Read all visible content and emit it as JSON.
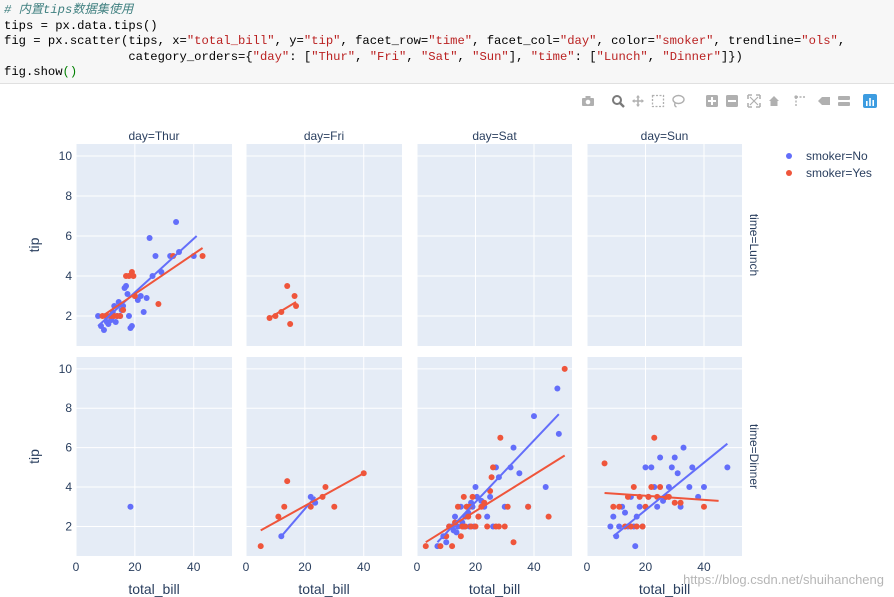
{
  "code": {
    "comment": "# 内置tips数据集使用",
    "line1": "tips = px.data.tips()",
    "line2_pre": "fig = px.scatter(tips, x=",
    "line2_s1": "\"total_bill\"",
    "line2_mid1": ", y=",
    "line2_s2": "\"tip\"",
    "line2_mid2": ", facet_row=",
    "line2_s3": "\"time\"",
    "line2_mid3": ", facet_col=",
    "line2_s4": "\"day\"",
    "line2_mid4": ", color=",
    "line2_s5": "\"smoker\"",
    "line2_mid5": ", trendline=",
    "line2_s6": "\"ols\"",
    "line2_end": ",",
    "line3_pre": "                 category_orders={",
    "line3_s1": "\"day\"",
    "line3_mid1": ": [",
    "line3_s2": "\"Thur\"",
    "line3_c1": ", ",
    "line3_s3": "\"Fri\"",
    "line3_c2": ", ",
    "line3_s4": "\"Sat\"",
    "line3_c3": ", ",
    "line3_s5": "\"Sun\"",
    "line3_mid2": "], ",
    "line3_s6": "\"time\"",
    "line3_mid3": ": [",
    "line3_s7": "\"Lunch\"",
    "line3_c4": ", ",
    "line3_s8": "\"Dinner\"",
    "line3_end": "]})",
    "line4_pre": "fig.show",
    "line4_paren": "()"
  },
  "toolbar": {
    "icons": [
      "camera-icon",
      "zoom-icon",
      "pan-icon",
      "box-select-icon",
      "lasso-select-icon",
      "zoom-in-icon",
      "zoom-out-icon",
      "autoscale-icon",
      "reset-axes-icon",
      "spike-lines-icon",
      "hover-closest-icon",
      "hover-compare-icon",
      "plotly-logo-icon"
    ]
  },
  "watermark": "https://blog.csdn.net/shuihancheng",
  "colors": {
    "no": "#636efa",
    "yes": "#ef553b",
    "plot_bg": "#e5ecf6",
    "grid": "#ffffff",
    "text": "#2a3f5f"
  },
  "chart_data": {
    "type": "scatter",
    "facet_cols": [
      "day=Thur",
      "day=Fri",
      "day=Sat",
      "day=Sun"
    ],
    "facet_rows": [
      "time=Lunch",
      "time=Dinner"
    ],
    "xlabel": "total_bill",
    "ylabel": "tip",
    "xlim": [
      0,
      53
    ],
    "ylim": [
      0.5,
      10.6
    ],
    "xticks": [
      0,
      20,
      40
    ],
    "yticks": [
      2,
      4,
      6,
      8,
      10
    ],
    "legend": {
      "position": "top-right",
      "entries": [
        "smoker=No",
        "smoker=Yes"
      ]
    },
    "trendline": "ols",
    "facets": [
      {
        "row": "time=Lunch",
        "col": "day=Thur",
        "points": {
          "No": [
            [
              7.5,
              2.0
            ],
            [
              8.5,
              1.5
            ],
            [
              9.5,
              1.3
            ],
            [
              10,
              2.0
            ],
            [
              10.5,
              1.7
            ],
            [
              11,
              1.6
            ],
            [
              11.5,
              2.0
            ],
            [
              12,
              1.8
            ],
            [
              12.5,
              2.2
            ],
            [
              13,
              2.5
            ],
            [
              13.5,
              1.7
            ],
            [
              14,
              2.0
            ],
            [
              14.5,
              2.7
            ],
            [
              15,
              2.0
            ],
            [
              15.5,
              2.3
            ],
            [
              16,
              2.5
            ],
            [
              16.5,
              3.4
            ],
            [
              17,
              3.5
            ],
            [
              17.5,
              3.1
            ],
            [
              18,
              2.0
            ],
            [
              18.5,
              1.4
            ],
            [
              19,
              1.5
            ],
            [
              20,
              3.0
            ],
            [
              21,
              2.8
            ],
            [
              22,
              3.0
            ],
            [
              23,
              2.2
            ],
            [
              24,
              2.9
            ],
            [
              25,
              5.9
            ],
            [
              26,
              4.0
            ],
            [
              27,
              5.0
            ],
            [
              29,
              4.2
            ],
            [
              32,
              5.0
            ],
            [
              34,
              6.7
            ],
            [
              35,
              5.2
            ],
            [
              40,
              5.0
            ]
          ],
          "Yes": [
            [
              9,
              2.0
            ],
            [
              10.5,
              2.0
            ],
            [
              12,
              2.0
            ],
            [
              13,
              2.0
            ],
            [
              14,
              2.0
            ],
            [
              15,
              2.0
            ],
            [
              16,
              2.3
            ],
            [
              17,
              4.0
            ],
            [
              18,
              4.0
            ],
            [
              19,
              4.2
            ],
            [
              19.5,
              4.0
            ],
            [
              20,
              3.0
            ],
            [
              28,
              2.6
            ],
            [
              33,
              5.0
            ],
            [
              43,
              5.0
            ]
          ]
        },
        "trend": {
          "No": [
            [
              7.5,
              1.5
            ],
            [
              41,
              6.0
            ]
          ],
          "Yes": [
            [
              9,
              2.0
            ],
            [
              43,
              5.4
            ]
          ]
        }
      },
      {
        "row": "time=Lunch",
        "col": "day=Fri",
        "points": {
          "No": [],
          "Yes": [
            [
              8,
              1.9
            ],
            [
              10,
              2.0
            ],
            [
              12,
              2.2
            ],
            [
              14,
              3.5
            ],
            [
              15,
              1.6
            ],
            [
              16.5,
              3.0
            ],
            [
              17,
              2.5
            ]
          ]
        },
        "trend": {
          "No": null,
          "Yes": [
            [
              8,
              1.9
            ],
            [
              17,
              2.7
            ]
          ]
        }
      },
      {
        "row": "time=Lunch",
        "col": "day=Sat",
        "points": {
          "No": [],
          "Yes": []
        },
        "trend": {
          "No": null,
          "Yes": null
        }
      },
      {
        "row": "time=Lunch",
        "col": "day=Sun",
        "points": {
          "No": [],
          "Yes": []
        },
        "trend": {
          "No": null,
          "Yes": null
        }
      },
      {
        "row": "time=Dinner",
        "col": "day=Thur",
        "points": {
          "No": [
            [
              18.5,
              3.0
            ]
          ],
          "Yes": []
        },
        "trend": {
          "No": null,
          "Yes": null
        }
      },
      {
        "row": "time=Dinner",
        "col": "day=Fri",
        "points": {
          "No": [
            [
              12,
              1.5
            ],
            [
              22,
              3.5
            ],
            [
              23,
              3.3
            ],
            [
              23.5,
              3.2
            ]
          ],
          "Yes": [
            [
              5,
              1.0
            ],
            [
              11,
              2.5
            ],
            [
              13,
              3.0
            ],
            [
              14,
              4.3
            ],
            [
              22,
              3.0
            ],
            [
              26,
              3.5
            ],
            [
              27,
              4.0
            ],
            [
              30,
              3.0
            ],
            [
              40,
              4.7
            ]
          ]
        },
        "trend": {
          "No": [
            [
              12,
              1.5
            ],
            [
              23.5,
              3.5
            ]
          ],
          "Yes": [
            [
              5,
              1.8
            ],
            [
              40,
              4.7
            ]
          ]
        }
      },
      {
        "row": "time=Dinner",
        "col": "day=Sat",
        "points": {
          "No": [
            [
              7,
              1.0
            ],
            [
              9,
              1.5
            ],
            [
              10,
              1.2
            ],
            [
              11,
              2.0
            ],
            [
              12,
              2.0
            ],
            [
              12.5,
              1.8
            ],
            [
              13,
              2.5
            ],
            [
              13.5,
              1.7
            ],
            [
              14,
              2.0
            ],
            [
              15,
              3.0
            ],
            [
              15.5,
              2.2
            ],
            [
              16,
              2.0
            ],
            [
              16.5,
              2.5
            ],
            [
              17,
              3.0
            ],
            [
              17.5,
              2.7
            ],
            [
              18,
              2.0
            ],
            [
              18.5,
              3.2
            ],
            [
              19,
              3.0
            ],
            [
              19.5,
              2.0
            ],
            [
              20,
              4.0
            ],
            [
              20.5,
              3.5
            ],
            [
              21,
              2.5
            ],
            [
              22,
              3.3
            ],
            [
              23,
              3.0
            ],
            [
              24,
              2.5
            ],
            [
              25,
              3.5
            ],
            [
              26,
              2.0
            ],
            [
              27,
              5.0
            ],
            [
              28,
              4.5
            ],
            [
              30,
              3.0
            ],
            [
              32,
              5.0
            ],
            [
              33,
              6.0
            ],
            [
              35,
              4.7
            ],
            [
              38,
              3.0
            ],
            [
              40,
              7.6
            ],
            [
              44,
              4.0
            ],
            [
              48,
              9.0
            ],
            [
              48.5,
              6.7
            ]
          ],
          "Yes": [
            [
              3,
              1.0
            ],
            [
              8,
              1.0
            ],
            [
              10,
              1.5
            ],
            [
              11,
              2.0
            ],
            [
              12,
              1.0
            ],
            [
              13,
              2.2
            ],
            [
              14,
              3.0
            ],
            [
              15,
              1.5
            ],
            [
              15.5,
              2.0
            ],
            [
              16,
              3.5
            ],
            [
              16.5,
              2.0
            ],
            [
              17,
              3.0
            ],
            [
              17.5,
              2.5
            ],
            [
              18,
              3.0
            ],
            [
              18.5,
              2.0
            ],
            [
              19,
              3.5
            ],
            [
              20,
              2.0
            ],
            [
              21,
              2.5
            ],
            [
              22,
              3.0
            ],
            [
              23,
              3.2
            ],
            [
              24,
              2.0
            ],
            [
              25,
              3.8
            ],
            [
              25.5,
              4.5
            ],
            [
              26,
              5.0
            ],
            [
              27,
              2.0
            ],
            [
              28,
              2.0
            ],
            [
              28.5,
              6.5
            ],
            [
              30,
              2.0
            ],
            [
              31,
              3.0
            ],
            [
              33,
              1.2
            ],
            [
              38,
              3.0
            ],
            [
              45,
              2.5
            ],
            [
              50.5,
              10.0
            ]
          ]
        },
        "trend": {
          "No": [
            [
              7,
              1.2
            ],
            [
              48.5,
              7.7
            ]
          ],
          "Yes": [
            [
              3,
              1.2
            ],
            [
              50.5,
              5.6
            ]
          ]
        }
      },
      {
        "row": "time=Dinner",
        "col": "day=Sun",
        "points": {
          "No": [
            [
              8,
              2.0
            ],
            [
              9,
              2.5
            ],
            [
              10,
              1.5
            ],
            [
              11,
              2.0
            ],
            [
              12,
              3.0
            ],
            [
              13,
              2.7
            ],
            [
              14,
              2.0
            ],
            [
              15,
              3.5
            ],
            [
              16,
              2.0
            ],
            [
              16.5,
              1.0
            ],
            [
              17,
              2.5
            ],
            [
              18,
              3.0
            ],
            [
              19,
              2.0
            ],
            [
              20,
              5.0
            ],
            [
              21,
              3.5
            ],
            [
              22,
              5.0
            ],
            [
              23,
              4.0
            ],
            [
              24,
              3.0
            ],
            [
              25,
              5.5
            ],
            [
              26,
              3.3
            ],
            [
              27,
              3.5
            ],
            [
              28,
              4.0
            ],
            [
              29,
              5.0
            ],
            [
              30,
              5.5
            ],
            [
              31,
              4.7
            ],
            [
              32,
              3.0
            ],
            [
              33,
              6.0
            ],
            [
              35,
              4.0
            ],
            [
              36,
              5.0
            ],
            [
              38,
              3.5
            ],
            [
              40,
              4.0
            ],
            [
              48,
              5.0
            ]
          ],
          "Yes": [
            [
              6,
              5.2
            ],
            [
              9,
              3.0
            ],
            [
              11,
              3.0
            ],
            [
              13,
              2.0
            ],
            [
              14,
              3.5
            ],
            [
              15,
              2.0
            ],
            [
              16,
              4.0
            ],
            [
              17,
              2.0
            ],
            [
              18,
              3.5
            ],
            [
              19,
              2.0
            ],
            [
              20,
              3.0
            ],
            [
              21,
              3.5
            ],
            [
              22,
              4.0
            ],
            [
              23,
              6.5
            ],
            [
              24,
              3.5
            ],
            [
              25,
              4.0
            ],
            [
              27,
              3.5
            ],
            [
              28,
              3.5
            ],
            [
              30,
              3.2
            ],
            [
              32,
              3.2
            ],
            [
              40,
              3.0
            ]
          ]
        },
        "trend": {
          "No": [
            [
              9,
              1.5
            ],
            [
              48,
              6.2
            ]
          ],
          "Yes": [
            [
              6,
              3.7
            ],
            [
              45,
              3.3
            ]
          ]
        }
      }
    ]
  }
}
